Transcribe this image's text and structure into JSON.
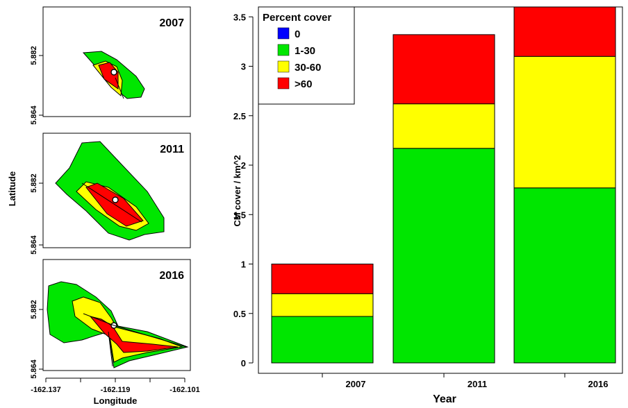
{
  "colors": {
    "zero": "#0000FF",
    "low": "#00E600",
    "mid": "#FFFF00",
    "high": "#FF0000",
    "axis": "#000000",
    "vent": "#FFFFFF"
  },
  "maps": {
    "y_label": "Latitude",
    "x_label": "Longitude",
    "y_ticks": [
      "5.882",
      "5.864"
    ],
    "x_ticks": [
      "-162.137",
      "-162.119",
      "-162.101"
    ],
    "panels": [
      {
        "year": "2007"
      },
      {
        "year": "2011"
      },
      {
        "year": "2016"
      }
    ]
  },
  "chart_data": {
    "type": "bar",
    "stacked": true,
    "xlabel": "Year",
    "ylabel": "CM cover / km^2",
    "categories": [
      "2007",
      "2011",
      "2016"
    ],
    "ylim": [
      0,
      3.6
    ],
    "yticks": [
      0,
      0.5,
      1,
      1.5,
      2,
      2.5,
      3,
      3.5
    ],
    "ytick_labels": [
      "0",
      "0.5",
      "1",
      "1.5",
      "2",
      "2.5",
      "3",
      "3.5"
    ],
    "legend": {
      "title": "Percent cover",
      "placement": "top-left"
    },
    "series": [
      {
        "name": "0",
        "color_key": "zero",
        "values": [
          0,
          0,
          0
        ]
      },
      {
        "name": "1-30",
        "color_key": "low",
        "values": [
          0.47,
          2.17,
          1.77
        ]
      },
      {
        "name": "30-60",
        "color_key": "mid",
        "values": [
          0.23,
          0.45,
          1.33
        ]
      },
      {
        "name": ">60",
        "color_key": "high",
        "values": [
          0.3,
          0.7,
          0.5
        ]
      }
    ]
  }
}
